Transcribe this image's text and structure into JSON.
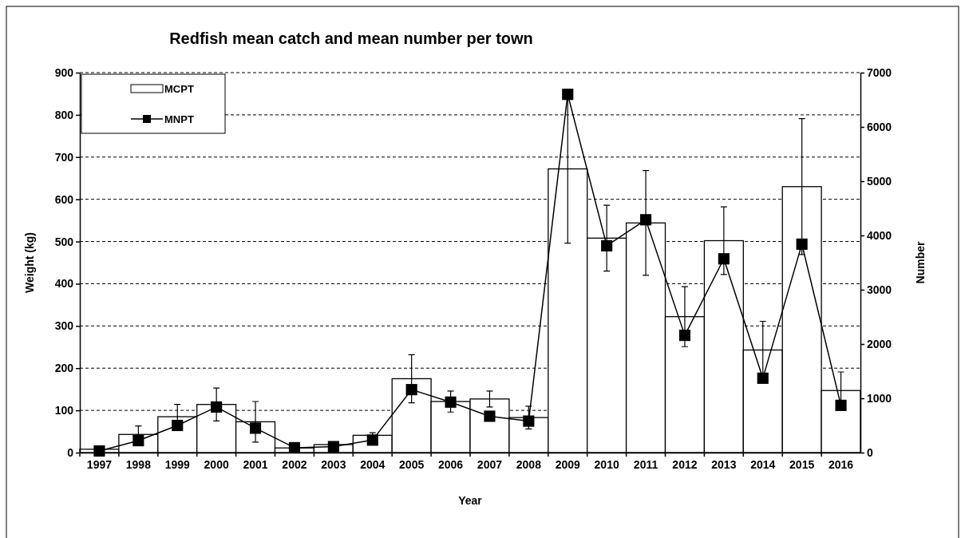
{
  "chart_data": {
    "type": "bar",
    "title": "Redfish mean catch and mean number per town",
    "xlabel": "Year",
    "ylabel": "Weight (kg)",
    "y2label": "Number",
    "categories": [
      "1997",
      "1998",
      "1999",
      "2000",
      "2001",
      "2002",
      "2003",
      "2004",
      "2005",
      "2006",
      "2007",
      "2008",
      "2009",
      "2010",
      "2011",
      "2012",
      "2013",
      "2014",
      "2015",
      "2016"
    ],
    "series": [
      {
        "name": "MCPT",
        "color": "#ffffff",
        "values": [
          8,
          43,
          85,
          114,
          73,
          11,
          19,
          41,
          175,
          121,
          127,
          83,
          672,
          508,
          544,
          322,
          502,
          243,
          630,
          147
        ],
        "errors": [
          null,
          20,
          29,
          39,
          48,
          null,
          null,
          6,
          57,
          25,
          19,
          27,
          176,
          78,
          124,
          71,
          80,
          68,
          161,
          44
        ]
      },
      {
        "name": "MNPT",
        "type": "line",
        "axis": "y2",
        "color": "#000000",
        "marker": "square",
        "values": [
          30,
          220,
          500,
          840,
          450,
          90,
          110,
          230,
          1160,
          930,
          670,
          580,
          6600,
          3810,
          4290,
          2160,
          3570,
          1370,
          3840,
          870
        ]
      }
    ],
    "ylim": [
      0,
      900
    ],
    "yticks": [
      0,
      100,
      200,
      300,
      400,
      500,
      600,
      700,
      800,
      900
    ],
    "y2lim": [
      0,
      7000
    ],
    "y2ticks": [
      0,
      1000,
      2000,
      3000,
      4000,
      5000,
      6000,
      7000
    ],
    "grid": "y",
    "legend": "top left",
    "line_style": "solid"
  }
}
